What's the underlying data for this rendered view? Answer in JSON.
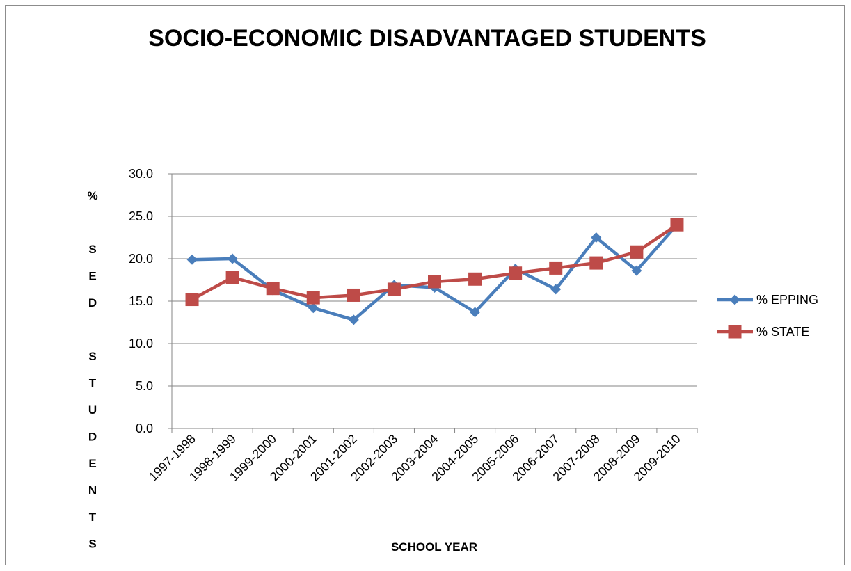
{
  "chart_data": {
    "type": "line",
    "title": "SOCIO-ECONOMIC DISADVANTAGED STUDENTS",
    "xlabel": "SCHOOL YEAR",
    "ylabel": "% SED STUDENTS",
    "ylabel_lines": [
      "%",
      "",
      "S",
      "E",
      "D",
      "",
      "S",
      "T",
      "U",
      "D",
      "E",
      "N",
      "T",
      "S"
    ],
    "categories": [
      "1997-1998",
      "1998-1999",
      "1999-2000",
      "2000-2001",
      "2001-2002",
      "2002-2003",
      "2003-2004",
      "2004-2005",
      "2005-2006",
      "2006-2007",
      "2007-2008",
      "2008-2009",
      "2009-2010"
    ],
    "ylim": [
      0,
      30
    ],
    "yticks": [
      "0.0",
      "5.0",
      "10.0",
      "15.0",
      "20.0",
      "25.0",
      "30.0"
    ],
    "grid": true,
    "legend_position": "right",
    "series": [
      {
        "name": "% EPPING",
        "color": "#4a7ebb",
        "marker": "diamond",
        "values": [
          19.9,
          20.0,
          16.3,
          14.2,
          12.8,
          16.9,
          16.6,
          13.7,
          18.8,
          16.4,
          22.5,
          18.6,
          24.0
        ]
      },
      {
        "name": "% STATE",
        "color": "#be4b48",
        "marker": "square",
        "values": [
          15.2,
          17.8,
          16.5,
          15.4,
          15.7,
          16.4,
          17.3,
          17.6,
          18.3,
          18.9,
          19.5,
          20.8,
          24.0
        ]
      }
    ]
  }
}
